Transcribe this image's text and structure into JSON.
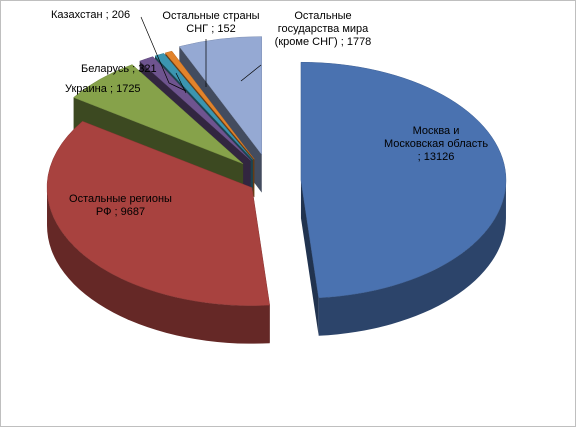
{
  "chart_data": {
    "type": "pie",
    "categories": [
      "Москва и Московская область",
      "Остальные регионы РФ",
      "Украина",
      "Беларусь",
      "Казахстан",
      "Остальные страны СНГ",
      "Остальные государства мира (кроме СНГ)"
    ],
    "values": [
      13126,
      9687,
      1725,
      321,
      206,
      152,
      1778
    ],
    "colors": [
      "#4a72b0",
      "#a8423f",
      "#86a24a",
      "#6e548f",
      "#3b95b0",
      "#e2832b",
      "#95a9d3"
    ],
    "separator": ";"
  }
}
